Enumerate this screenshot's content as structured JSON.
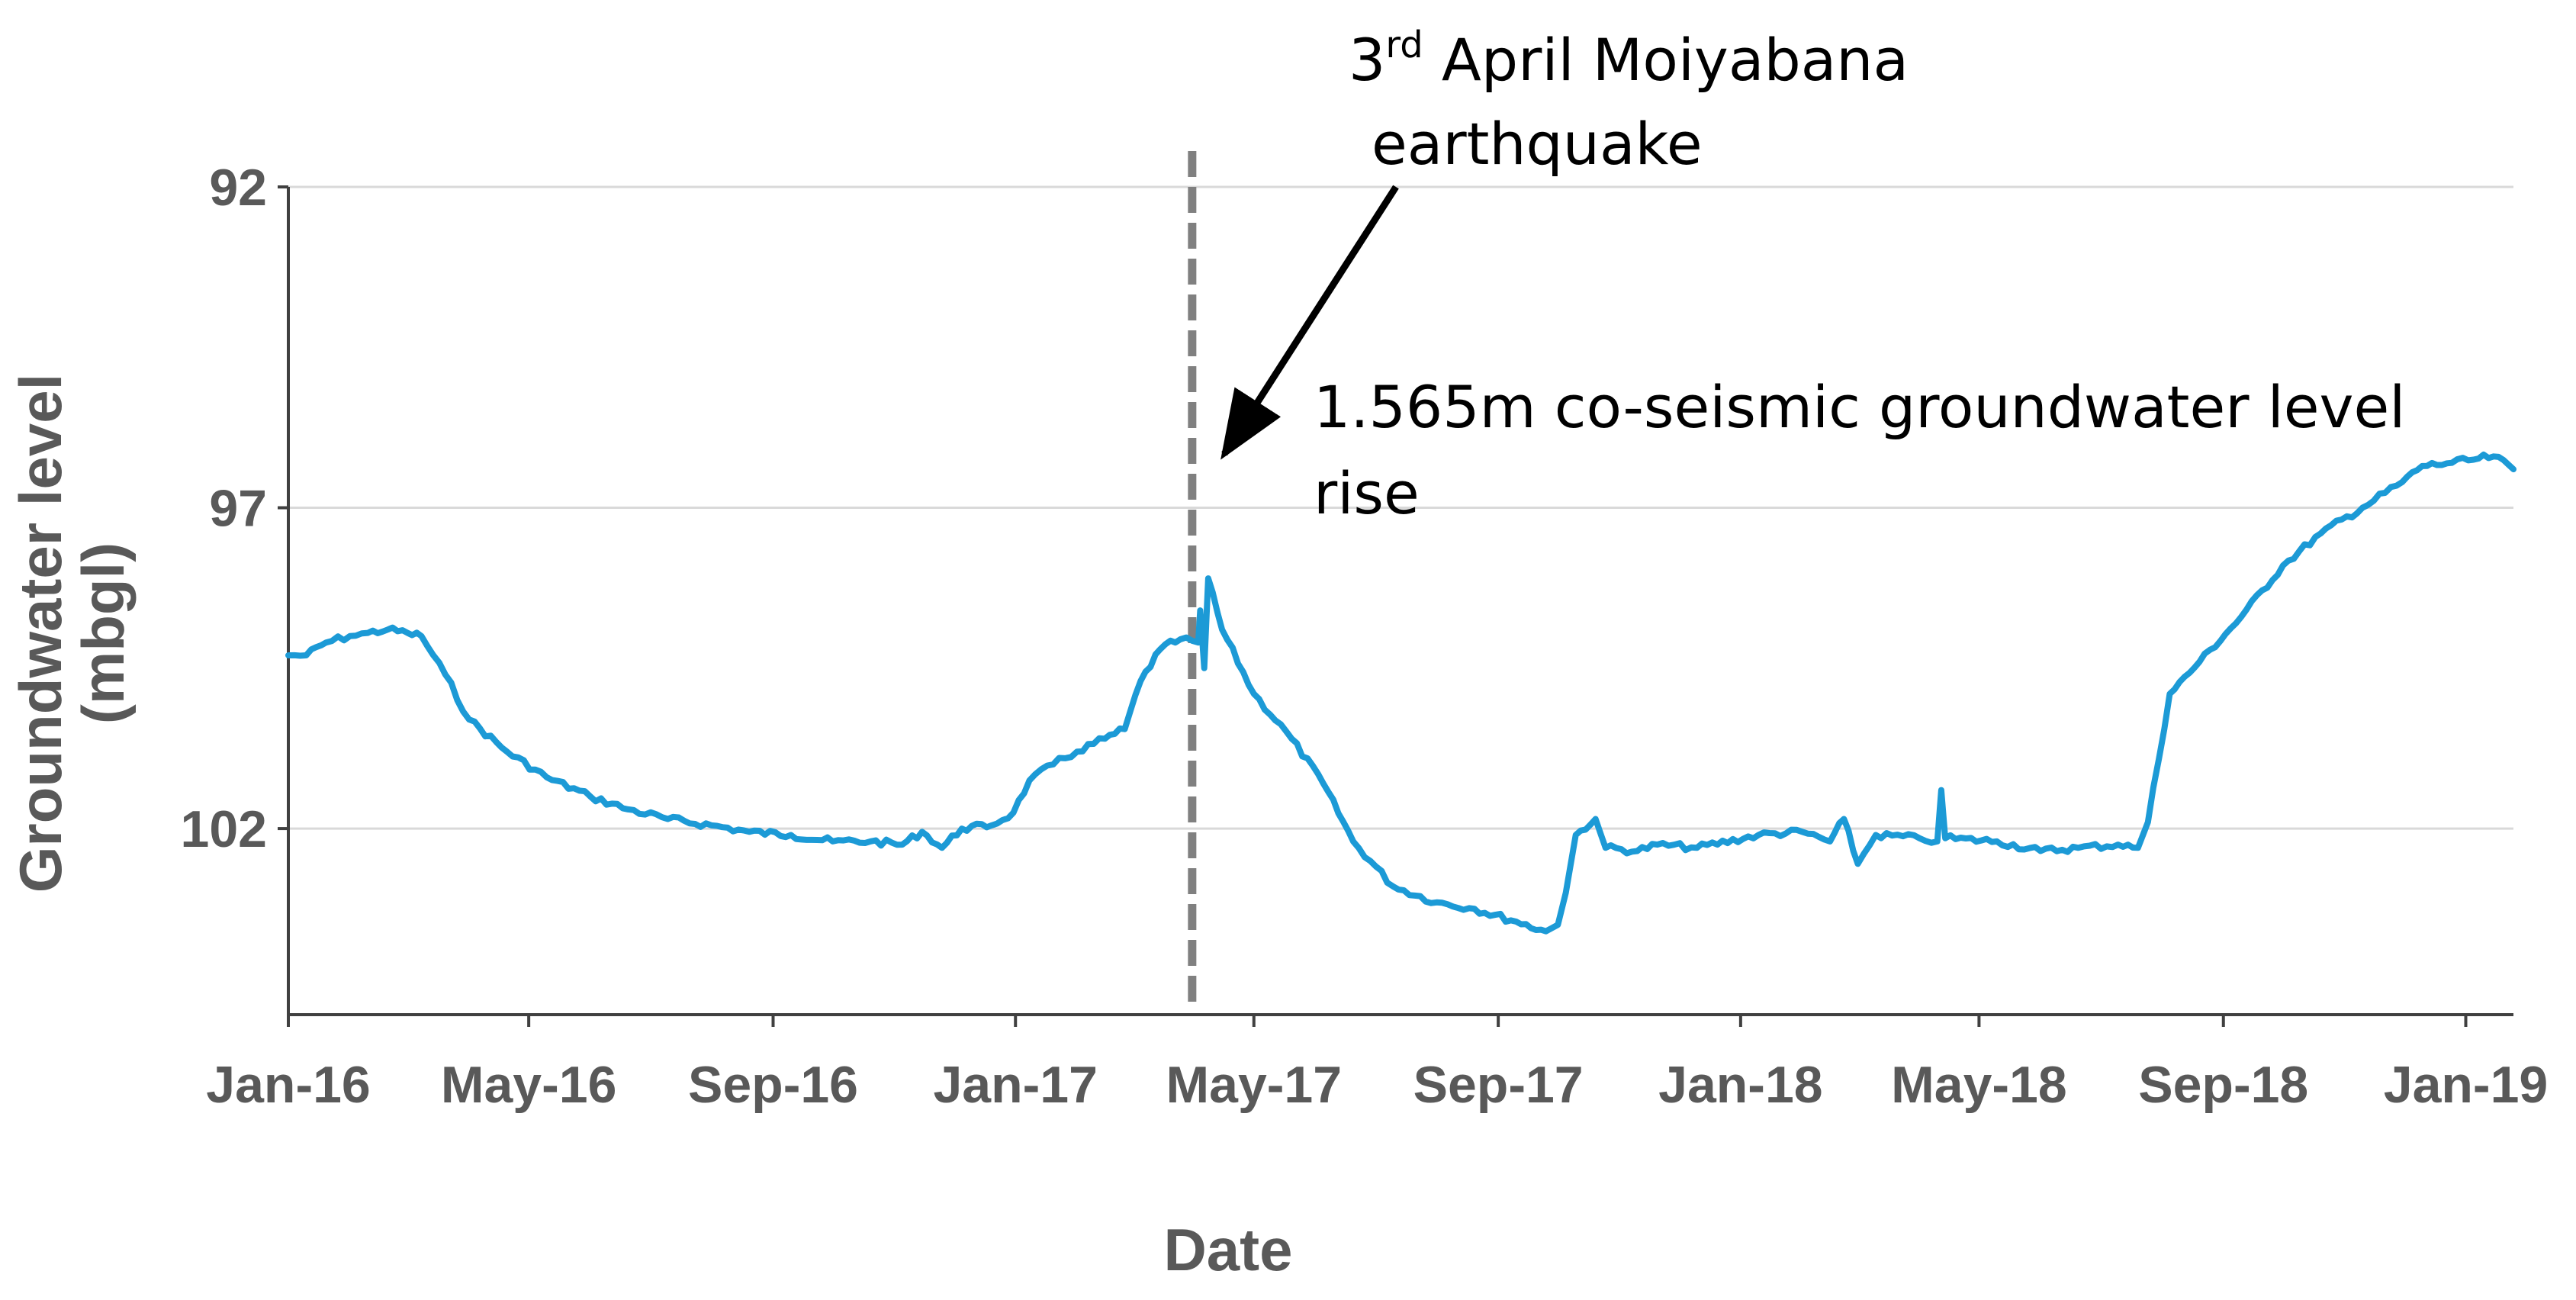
{
  "chart_data": {
    "type": "line",
    "title": "",
    "xlabel": "Date",
    "ylabel_line1": "Groundwater level",
    "ylabel_line2": "(mbgl)",
    "ylim": [
      92,
      104.9
    ],
    "y_axis_inverted": true,
    "yticks": [
      92,
      97,
      102
    ],
    "ytick_labels": [
      "92",
      "97",
      "102"
    ],
    "xlim": [
      "2016-01-01",
      "2019-01-25"
    ],
    "xticks": [
      "2016-01-01",
      "2016-05-01",
      "2016-09-01",
      "2017-01-01",
      "2017-05-01",
      "2017-09-01",
      "2018-01-01",
      "2018-05-01",
      "2018-09-01",
      "2019-01-01"
    ],
    "xtick_labels": [
      "Jan-16",
      "May-16",
      "Sep-16",
      "Jan-17",
      "May-17",
      "Sep-17",
      "Jan-18",
      "May-18",
      "Sep-18",
      "Jan-19"
    ],
    "grid": "horizontal",
    "colors": {
      "line": "#1c9ad6",
      "event_line": "#808080",
      "grid": "#d9d9d9",
      "axis": "#404040",
      "text": "#595959"
    },
    "event_marker": {
      "date": "2017-04-03",
      "style": "dashed"
    },
    "annotations": {
      "earthquake_part1": "3",
      "earthquake_superscript": "rd",
      "earthquake_part2": " April Moiyabana",
      "earthquake_line2": "earthquake",
      "rise_line1": "1.565m co-seismic  groundwater level",
      "rise_line2": "rise"
    },
    "series": [
      {
        "values": [
          [
            "2016-01-01",
            99.3
          ],
          [
            "2016-01-10",
            99.3
          ],
          [
            "2016-01-20",
            99.1
          ],
          [
            "2016-02-01",
            99.0
          ],
          [
            "2016-02-10",
            98.95
          ],
          [
            "2016-02-20",
            98.9
          ],
          [
            "2016-03-01",
            98.95
          ],
          [
            "2016-03-08",
            99.0
          ],
          [
            "2016-03-20",
            99.6
          ],
          [
            "2016-04-01",
            100.3
          ],
          [
            "2016-04-20",
            100.8
          ],
          [
            "2016-05-10",
            101.2
          ],
          [
            "2016-06-01",
            101.5
          ],
          [
            "2016-06-20",
            101.7
          ],
          [
            "2016-07-10",
            101.85
          ],
          [
            "2016-08-01",
            101.95
          ],
          [
            "2016-08-20",
            102.05
          ],
          [
            "2016-09-10",
            102.1
          ],
          [
            "2016-10-01",
            102.2
          ],
          [
            "2016-10-20",
            102.2
          ],
          [
            "2016-11-05",
            102.25
          ],
          [
            "2016-11-15",
            102.05
          ],
          [
            "2016-11-25",
            102.3
          ],
          [
            "2016-12-05",
            102.0
          ],
          [
            "2016-12-20",
            101.95
          ],
          [
            "2016-12-31",
            101.75
          ],
          [
            "2017-01-08",
            101.25
          ],
          [
            "2017-01-20",
            101.0
          ],
          [
            "2017-02-01",
            100.8
          ],
          [
            "2017-02-15",
            100.6
          ],
          [
            "2017-02-25",
            100.45
          ],
          [
            "2017-03-05",
            99.7
          ],
          [
            "2017-03-15",
            99.2
          ],
          [
            "2017-03-25",
            99.05
          ],
          [
            "2017-04-03",
            99.1
          ],
          [
            "2017-04-04",
            98.6
          ],
          [
            "2017-04-06",
            99.5
          ],
          [
            "2017-04-08",
            98.1
          ],
          [
            "2017-04-15",
            98.9
          ],
          [
            "2017-05-01",
            99.9
          ],
          [
            "2017-05-20",
            100.6
          ],
          [
            "2017-06-05",
            101.3
          ],
          [
            "2017-06-20",
            102.2
          ],
          [
            "2017-07-10",
            102.9
          ],
          [
            "2017-08-01",
            103.15
          ],
          [
            "2017-08-20",
            103.25
          ],
          [
            "2017-09-10",
            103.45
          ],
          [
            "2017-09-25",
            103.6
          ],
          [
            "2017-10-01",
            103.5
          ],
          [
            "2017-10-05",
            103.0
          ],
          [
            "2017-10-10",
            102.1
          ],
          [
            "2017-10-20",
            101.85
          ],
          [
            "2017-10-25",
            102.3
          ],
          [
            "2017-11-10",
            102.35
          ],
          [
            "2017-11-20",
            102.25
          ],
          [
            "2017-12-10",
            102.3
          ],
          [
            "2018-01-10",
            102.1
          ],
          [
            "2018-02-01",
            102.05
          ],
          [
            "2018-02-15",
            102.2
          ],
          [
            "2018-02-22",
            101.85
          ],
          [
            "2018-03-01",
            102.55
          ],
          [
            "2018-03-10",
            102.1
          ],
          [
            "2018-04-01",
            102.15
          ],
          [
            "2018-04-10",
            102.2
          ],
          [
            "2018-04-12",
            101.4
          ],
          [
            "2018-04-14",
            102.15
          ],
          [
            "2018-05-10",
            102.2
          ],
          [
            "2018-06-01",
            102.35
          ],
          [
            "2018-06-20",
            102.3
          ],
          [
            "2018-07-10",
            102.25
          ],
          [
            "2018-07-20",
            102.3
          ],
          [
            "2018-07-25",
            101.9
          ],
          [
            "2018-08-05",
            99.9
          ],
          [
            "2018-08-20",
            99.4
          ],
          [
            "2018-09-10",
            98.7
          ],
          [
            "2018-10-01",
            97.9
          ],
          [
            "2018-10-20",
            97.4
          ],
          [
            "2018-11-10",
            97.0
          ],
          [
            "2018-11-30",
            96.6
          ],
          [
            "2018-12-10",
            96.35
          ],
          [
            "2018-12-25",
            96.3
          ],
          [
            "2019-01-05",
            96.25
          ],
          [
            "2019-01-15",
            96.2
          ],
          [
            "2019-01-25",
            96.4
          ]
        ]
      }
    ]
  }
}
